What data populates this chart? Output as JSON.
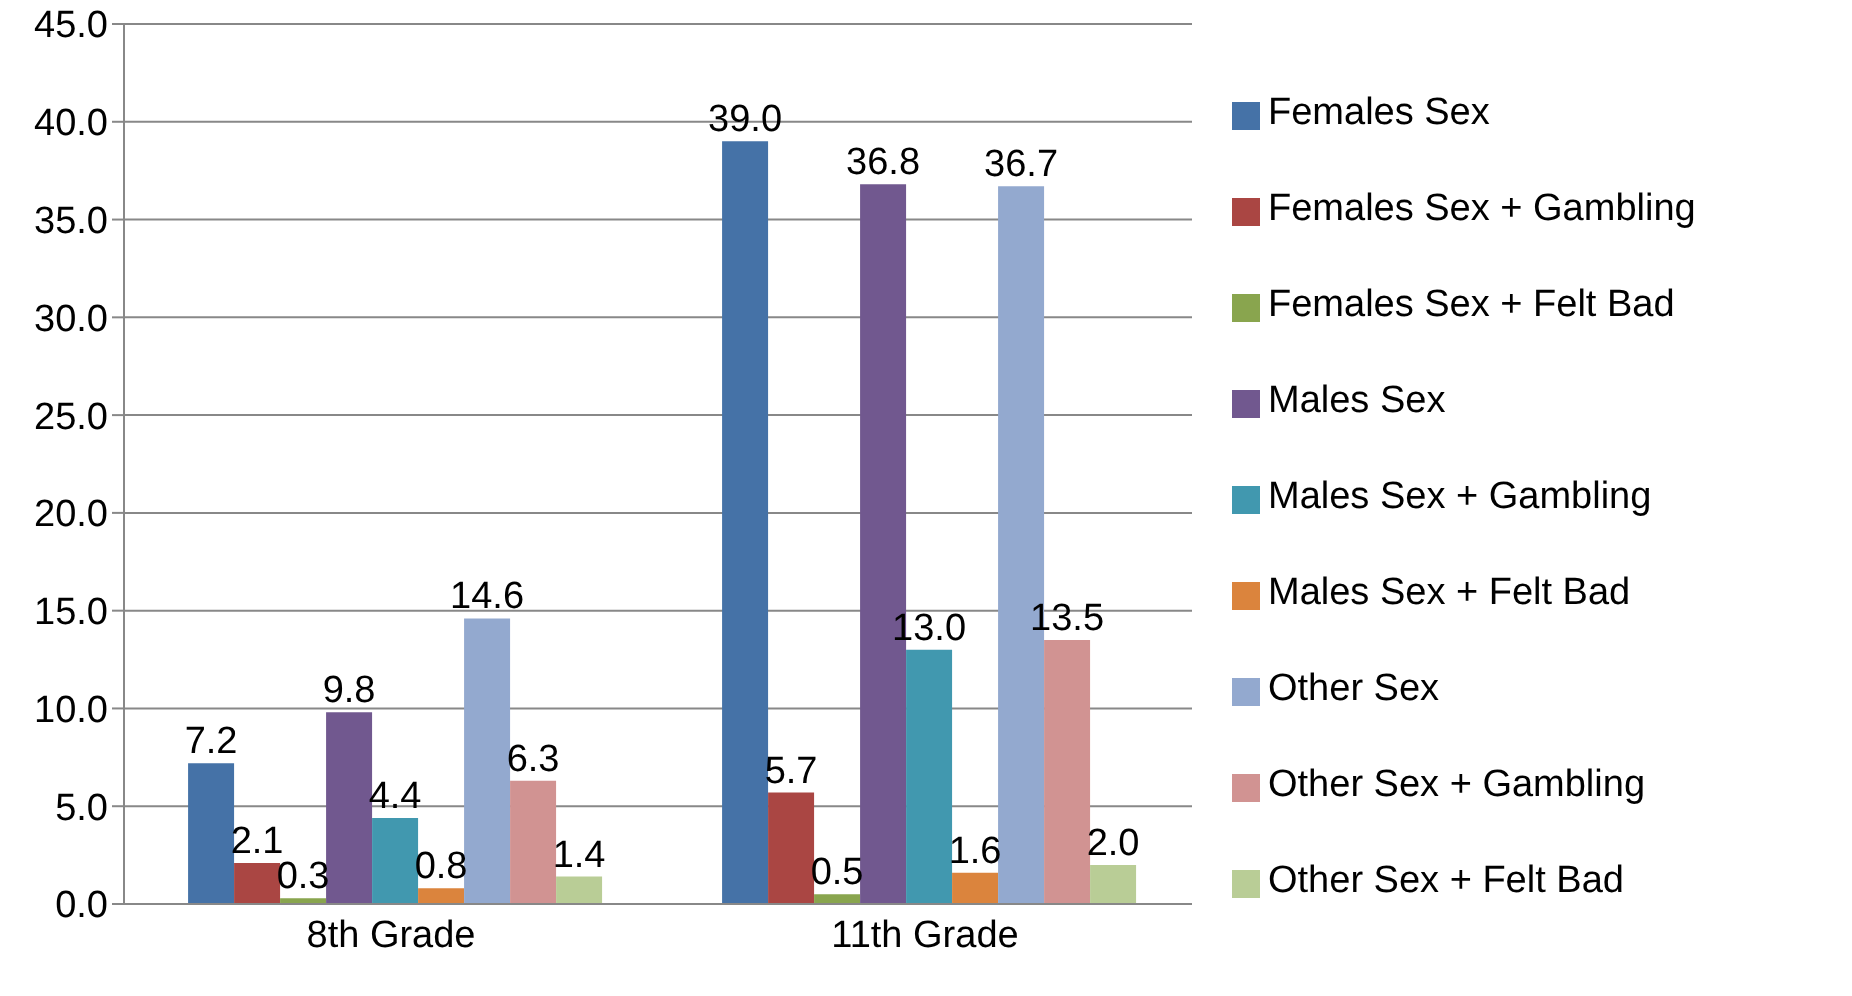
{
  "chart_data": {
    "type": "bar",
    "categories": [
      "8th Grade",
      "11th Grade"
    ],
    "series": [
      {
        "name": "Females Sex",
        "color": "#4572a7",
        "values": [
          7.2,
          39.0
        ],
        "value_labels": [
          "7.2",
          "39.0"
        ]
      },
      {
        "name": "Females Sex + Gambling",
        "color": "#aa4643",
        "values": [
          2.1,
          5.7
        ],
        "value_labels": [
          "2.1",
          "5.7"
        ]
      },
      {
        "name": "Females Sex + Felt Bad",
        "color": "#89a54e",
        "values": [
          0.3,
          0.5
        ],
        "value_labels": [
          "0.3",
          "0.5"
        ]
      },
      {
        "name": "Males Sex",
        "color": "#71588f",
        "values": [
          9.8,
          36.8
        ],
        "value_labels": [
          "9.8",
          "36.8"
        ]
      },
      {
        "name": "Males Sex + Gambling",
        "color": "#4198af",
        "values": [
          4.4,
          13.0
        ],
        "value_labels": [
          "4.4",
          "13.0"
        ]
      },
      {
        "name": "Males Sex + Felt Bad",
        "color": "#db843d",
        "values": [
          0.8,
          1.6
        ],
        "value_labels": [
          "0.8",
          "1.6"
        ]
      },
      {
        "name": "Other Sex",
        "color": "#93a9cf",
        "values": [
          14.6,
          36.7
        ],
        "value_labels": [
          "14.6",
          "36.7"
        ]
      },
      {
        "name": "Other Sex + Gambling",
        "color": "#d19392",
        "values": [
          6.3,
          13.5
        ],
        "value_labels": [
          "6.3",
          "13.5"
        ]
      },
      {
        "name": "Other Sex + Felt Bad",
        "color": "#b9cd96",
        "values": [
          1.4,
          2.0
        ],
        "value_labels": [
          "1.4",
          "2.0"
        ]
      }
    ],
    "ylim": [
      0,
      45
    ],
    "yticks": [
      {
        "value": 0,
        "label": "0.0"
      },
      {
        "value": 5,
        "label": "5.0"
      },
      {
        "value": 10,
        "label": "10.0"
      },
      {
        "value": 15,
        "label": "15.0"
      },
      {
        "value": 20,
        "label": "20.0"
      },
      {
        "value": 25,
        "label": "25.0"
      },
      {
        "value": 30,
        "label": "30.0"
      },
      {
        "value": 35,
        "label": "35.0"
      },
      {
        "value": 40,
        "label": "40.0"
      },
      {
        "value": 45,
        "label": "45.0"
      }
    ],
    "grid": "y",
    "legend": "right"
  }
}
